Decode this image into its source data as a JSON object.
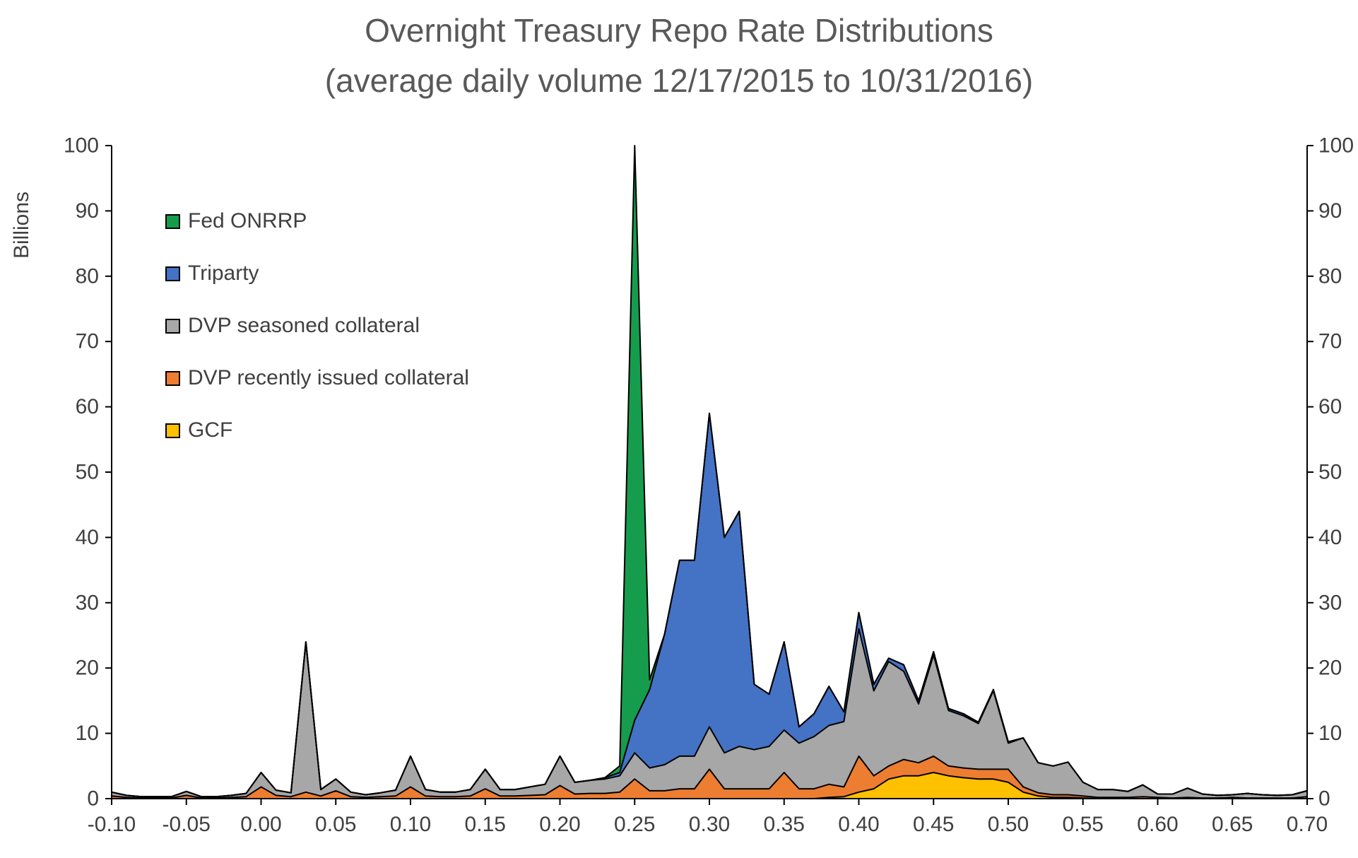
{
  "chart_data": {
    "type": "area",
    "stacked": true,
    "title": "Overnight Treasury Repo Rate Distributions",
    "subtitle": "(average daily volume 12/17/2015 to 10/31/2016)",
    "ylabel": "Billions",
    "xlabel": "",
    "xlim": [
      -0.1,
      0.7
    ],
    "ylim": [
      0,
      100
    ],
    "grid": false,
    "legend_position": "upper-left-inside",
    "outline_color": "#000000",
    "y_ticks": [
      0,
      10,
      20,
      30,
      40,
      50,
      60,
      70,
      80,
      90,
      100
    ],
    "x_tick_labels": [
      "-0.10",
      "-0.05",
      "0.00",
      "0.05",
      "0.10",
      "0.15",
      "0.20",
      "0.25",
      "0.30",
      "0.35",
      "0.40",
      "0.45",
      "0.50",
      "0.55",
      "0.60",
      "0.65",
      "0.70"
    ],
    "x": [
      -0.1,
      -0.09,
      -0.08,
      -0.07,
      -0.06,
      -0.05,
      -0.04,
      -0.03,
      -0.02,
      -0.01,
      0.0,
      0.01,
      0.02,
      0.03,
      0.04,
      0.05,
      0.06,
      0.07,
      0.08,
      0.09,
      0.1,
      0.11,
      0.12,
      0.13,
      0.14,
      0.15,
      0.16,
      0.17,
      0.18,
      0.19,
      0.2,
      0.21,
      0.22,
      0.23,
      0.24,
      0.25,
      0.26,
      0.27,
      0.28,
      0.29,
      0.3,
      0.31,
      0.32,
      0.33,
      0.34,
      0.35,
      0.36,
      0.37,
      0.38,
      0.39,
      0.4,
      0.41,
      0.42,
      0.43,
      0.44,
      0.45,
      0.46,
      0.47,
      0.48,
      0.49,
      0.5,
      0.51,
      0.52,
      0.53,
      0.54,
      0.55,
      0.56,
      0.57,
      0.58,
      0.59,
      0.6,
      0.61,
      0.62,
      0.63,
      0.64,
      0.65,
      0.66,
      0.67,
      0.68,
      0.69,
      0.7
    ],
    "series": [
      {
        "name": "GCF",
        "id": "gcf",
        "color": "#ffc000",
        "values": [
          0,
          0,
          0,
          0,
          0,
          0,
          0,
          0,
          0,
          0,
          0,
          0,
          0,
          0,
          0,
          0,
          0,
          0,
          0,
          0,
          0,
          0,
          0,
          0,
          0,
          0,
          0,
          0,
          0,
          0,
          0,
          0,
          0,
          0,
          0,
          0,
          0,
          0,
          0,
          0,
          0,
          0,
          0,
          0,
          0,
          0,
          0,
          0,
          0.2,
          0.3,
          1.0,
          1.5,
          3.0,
          3.5,
          3.5,
          4.0,
          3.5,
          3.2,
          3.0,
          3.0,
          2.5,
          1.0,
          0.4,
          0.2,
          0.2,
          0.1,
          0,
          0,
          0,
          0,
          0,
          0,
          0,
          0,
          0,
          0,
          0,
          0,
          0,
          0,
          0
        ]
      },
      {
        "name": "DVP recently issued collateral",
        "id": "dvp-recent",
        "color": "#ed7d31",
        "values": [
          0.4,
          0.2,
          0.1,
          0.1,
          0.1,
          0.5,
          0.1,
          0.1,
          0.2,
          0.3,
          1.8,
          0.5,
          0.3,
          1.0,
          0.4,
          1.2,
          0.3,
          0.2,
          0.3,
          0.4,
          1.8,
          0.4,
          0.3,
          0.3,
          0.4,
          1.5,
          0.4,
          0.4,
          0.5,
          0.6,
          2.0,
          0.7,
          0.8,
          0.8,
          1.0,
          3.0,
          1.2,
          1.2,
          1.5,
          1.5,
          4.5,
          1.5,
          1.5,
          1.5,
          1.5,
          4.0,
          1.5,
          1.5,
          2.0,
          1.5,
          5.5,
          2.0,
          2.0,
          2.5,
          2.0,
          2.5,
          1.5,
          1.5,
          1.5,
          1.5,
          2.0,
          0.8,
          0.5,
          0.4,
          0.4,
          0.3,
          0.2,
          0.2,
          0.2,
          0.3,
          0.2,
          0.1,
          0.2,
          0.1,
          0.1,
          0.2,
          0.1,
          0.1,
          0.1,
          0.1,
          0.3
        ]
      },
      {
        "name": "DVP seasoned collateral",
        "id": "dvp-seasoned",
        "color": "#a7a7a7",
        "values": [
          0.6,
          0.3,
          0.2,
          0.2,
          0.2,
          0.6,
          0.2,
          0.2,
          0.3,
          0.5,
          2.2,
          0.8,
          0.6,
          23.0,
          1.0,
          1.8,
          0.7,
          0.4,
          0.6,
          0.9,
          4.7,
          1.0,
          0.7,
          0.7,
          1.0,
          3.0,
          1.0,
          1.0,
          1.3,
          1.6,
          4.5,
          1.8,
          2.0,
          2.2,
          2.5,
          4.0,
          3.5,
          4.0,
          5.0,
          5.0,
          6.5,
          5.5,
          6.5,
          6.0,
          6.5,
          6.5,
          7.0,
          8.0,
          9.0,
          10.0,
          19.5,
          13.0,
          16.0,
          13.5,
          9.0,
          15.5,
          8.5,
          8.0,
          7.0,
          12.0,
          4.0,
          7.5,
          4.6,
          4.4,
          5.0,
          2.1,
          1.2,
          1.2,
          0.9,
          1.8,
          0.5,
          0.6,
          1.4,
          0.6,
          0.4,
          0.4,
          0.7,
          0.5,
          0.4,
          0.5,
          0.9
        ]
      },
      {
        "name": "Triparty",
        "id": "triparty",
        "color": "#4472c4",
        "values": [
          0,
          0,
          0,
          0,
          0,
          0,
          0,
          0,
          0,
          0,
          0,
          0,
          0,
          0,
          0,
          0,
          0,
          0,
          0,
          0,
          0,
          0,
          0,
          0,
          0,
          0,
          0,
          0,
          0,
          0,
          0,
          0,
          0,
          0.2,
          0.5,
          5.0,
          12.0,
          20.0,
          30.0,
          30.0,
          48.0,
          33.0,
          36.0,
          10.0,
          8.0,
          13.5,
          2.5,
          3.5,
          6.0,
          1.5,
          2.5,
          1.0,
          0.5,
          1.0,
          0.5,
          0.5,
          0.3,
          0.3,
          0.2,
          0.2,
          0.2,
          0,
          0,
          0,
          0,
          0,
          0,
          0,
          0,
          0,
          0,
          0,
          0,
          0,
          0,
          0,
          0,
          0,
          0,
          0,
          0
        ]
      },
      {
        "name": "Fed ONRRP",
        "id": "fed-onrrp",
        "color": "#169c4d",
        "values": [
          0,
          0,
          0,
          0,
          0,
          0,
          0,
          0,
          0,
          0,
          0,
          0,
          0,
          0,
          0,
          0,
          0,
          0,
          0,
          0,
          0,
          0,
          0,
          0,
          0,
          0,
          0,
          0,
          0,
          0,
          0,
          0,
          0,
          0,
          1.0,
          88.0,
          1.5,
          0,
          0,
          0,
          0,
          0,
          0,
          0,
          0,
          0,
          0,
          0,
          0,
          0,
          0,
          0,
          0,
          0,
          0,
          0,
          0,
          0,
          0,
          0,
          0,
          0,
          0,
          0,
          0,
          0,
          0,
          0,
          0,
          0,
          0,
          0,
          0,
          0,
          0,
          0,
          0,
          0,
          0,
          0,
          0
        ]
      }
    ],
    "legend": [
      {
        "label": "Fed ONRRP",
        "id": "fed-onrrp",
        "color": "#169c4d"
      },
      {
        "label": "Triparty",
        "id": "triparty",
        "color": "#4472c4"
      },
      {
        "label": "DVP seasoned collateral",
        "id": "dvp-seasoned",
        "color": "#a7a7a7"
      },
      {
        "label": "DVP recently issued collateral",
        "id": "dvp-recent",
        "color": "#ed7d31"
      },
      {
        "label": "GCF",
        "id": "gcf",
        "color": "#ffc000"
      }
    ]
  }
}
